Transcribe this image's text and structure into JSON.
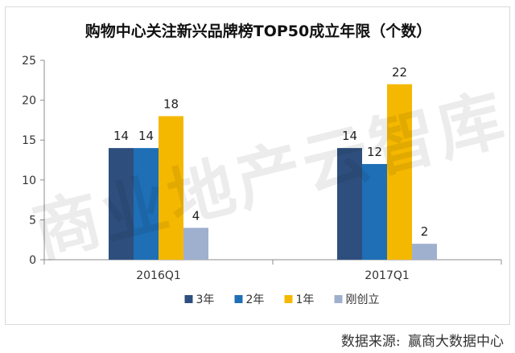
{
  "chart_data": {
    "type": "bar",
    "title": "购物中心关注新兴品牌榜TOP50成立年限（个数）",
    "categories": [
      "2016Q1",
      "2017Q1"
    ],
    "series": [
      {
        "name": "3年",
        "values": [
          14,
          14
        ],
        "color": "#2e4f7e"
      },
      {
        "name": "2年",
        "values": [
          14,
          12
        ],
        "color": "#1f6fb6"
      },
      {
        "name": "1年",
        "values": [
          18,
          22
        ],
        "color": "#f5b800"
      },
      {
        "name": "刚创立",
        "values": [
          4,
          2
        ],
        "color": "#9fb0cf"
      }
    ],
    "ylim": [
      0,
      25
    ],
    "yticks": [
      "0",
      "5",
      "10",
      "15",
      "20",
      "25"
    ],
    "grid": false,
    "legend_position": "bottom",
    "data_labels": true
  },
  "watermark": "商业地产云智库",
  "source": {
    "label": "数据来源:",
    "value": "赢商大数据中心"
  }
}
